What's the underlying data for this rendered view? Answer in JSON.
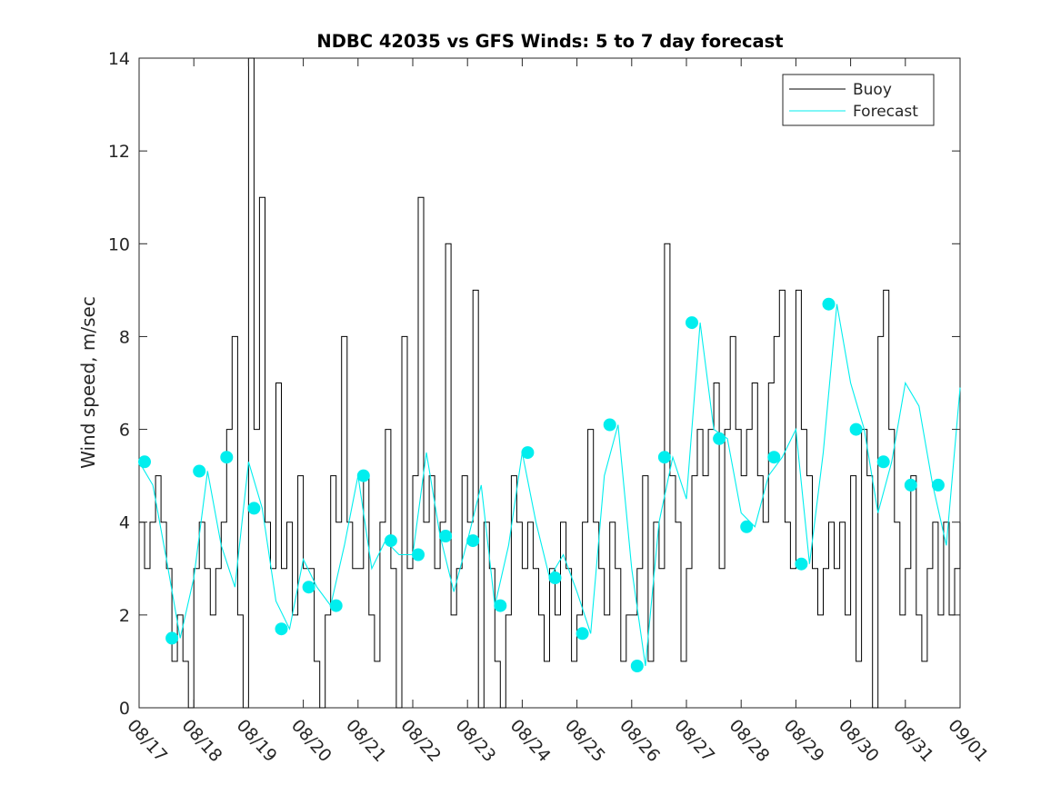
{
  "chart_data": {
    "type": "line",
    "title": "NDBC 42035 vs GFS Winds: 5 to 7 day forecast",
    "xlabel": "",
    "ylabel": "Wind speed, m/sec",
    "x_range": [
      0,
      15
    ],
    "ylim": [
      0,
      14
    ],
    "yticks": [
      0,
      2,
      4,
      6,
      8,
      10,
      12,
      14
    ],
    "x_tick_labels": [
      "08/17",
      "08/18",
      "08/19",
      "08/20",
      "08/21",
      "08/22",
      "08/23",
      "08/24",
      "08/25",
      "08/26",
      "08/27",
      "08/28",
      "08/29",
      "08/30",
      "08/31",
      "09/01"
    ],
    "legend_position": "top-right",
    "legend": [
      {
        "name": "Buoy",
        "color": "#000000"
      },
      {
        "name": "Forecast",
        "color": "#00eeee"
      }
    ],
    "series": [
      {
        "name": "Buoy",
        "color": "#000000",
        "x": [
          0.0,
          0.1,
          0.2,
          0.3,
          0.4,
          0.5,
          0.6,
          0.7,
          0.8,
          0.9,
          1.0,
          1.1,
          1.2,
          1.3,
          1.4,
          1.5,
          1.6,
          1.7,
          1.8,
          1.9,
          2.0,
          2.1,
          2.2,
          2.3,
          2.4,
          2.5,
          2.6,
          2.7,
          2.8,
          2.9,
          3.0,
          3.1,
          3.2,
          3.3,
          3.4,
          3.5,
          3.6,
          3.7,
          3.8,
          3.9,
          4.0,
          4.1,
          4.2,
          4.3,
          4.4,
          4.5,
          4.6,
          4.7,
          4.8,
          4.9,
          5.0,
          5.1,
          5.2,
          5.3,
          5.4,
          5.5,
          5.6,
          5.7,
          5.8,
          5.9,
          6.0,
          6.1,
          6.2,
          6.3,
          6.4,
          6.5,
          6.6,
          6.7,
          6.8,
          6.9,
          7.0,
          7.1,
          7.2,
          7.3,
          7.4,
          7.5,
          7.6,
          7.7,
          7.8,
          7.9,
          8.0,
          8.1,
          8.2,
          8.3,
          8.4,
          8.5,
          8.6,
          8.7,
          8.8,
          8.9,
          9.0,
          9.1,
          9.2,
          9.3,
          9.4,
          9.5,
          9.6,
          9.7,
          9.8,
          9.9,
          10.0,
          10.1,
          10.2,
          10.3,
          10.4,
          10.5,
          10.6,
          10.7,
          10.8,
          10.9,
          11.0,
          11.1,
          11.2,
          11.3,
          11.4,
          11.5,
          11.6,
          11.7,
          11.8,
          11.9,
          12.0,
          12.1,
          12.2,
          12.3,
          12.4,
          12.5,
          12.6,
          12.7,
          12.8,
          12.9,
          13.0,
          13.1,
          13.2,
          13.3,
          13.4,
          13.5,
          13.6,
          13.7,
          13.8,
          13.9,
          14.0,
          14.1,
          14.2,
          14.3,
          14.4,
          14.5,
          14.6,
          14.7,
          14.8,
          14.9,
          15.0
        ],
        "values": [
          4,
          3,
          4,
          5,
          4,
          3,
          1,
          2,
          1,
          0,
          3,
          4,
          3,
          2,
          3,
          4,
          6,
          8,
          2,
          0,
          14,
          6,
          11,
          4,
          3,
          7,
          3,
          4,
          2,
          5,
          3,
          3,
          1,
          0,
          2,
          5,
          4,
          8,
          4,
          3,
          3,
          5,
          2,
          1,
          4,
          6,
          3,
          0,
          8,
          3,
          5,
          11,
          4,
          5,
          3,
          4,
          10,
          2,
          3,
          5,
          4,
          9,
          0,
          4,
          3,
          1,
          0,
          2,
          5,
          4,
          3,
          4,
          3,
          2,
          1,
          3,
          2,
          4,
          3,
          1,
          2,
          4,
          6,
          4,
          3,
          2,
          4,
          3,
          1,
          2,
          2,
          3,
          5,
          1,
          4,
          3,
          10,
          5,
          4,
          1,
          3,
          5,
          6,
          5,
          6,
          7,
          3,
          6,
          8,
          6,
          5,
          6,
          7,
          5,
          4,
          7,
          8,
          9,
          4,
          3,
          9,
          6,
          5,
          3,
          2,
          3,
          4,
          3,
          4,
          2,
          5,
          1,
          6,
          5,
          0,
          8,
          9,
          6,
          4,
          2,
          3,
          5,
          2,
          1,
          3,
          4,
          2,
          4,
          2,
          3,
          4
        ]
      },
      {
        "name": "Forecast",
        "color": "#00eeee",
        "x": [
          0.0,
          0.25,
          0.5,
          0.75,
          1.0,
          1.25,
          1.5,
          1.75,
          2.0,
          2.25,
          2.5,
          2.75,
          3.0,
          3.25,
          3.5,
          3.75,
          4.0,
          4.25,
          4.5,
          4.75,
          5.0,
          5.25,
          5.5,
          5.75,
          6.0,
          6.25,
          6.5,
          6.75,
          7.0,
          7.25,
          7.5,
          7.75,
          8.0,
          8.25,
          8.5,
          8.75,
          9.0,
          9.25,
          9.5,
          9.75,
          10.0,
          10.25,
          10.5,
          10.75,
          11.0,
          11.25,
          11.5,
          11.75,
          12.0,
          12.25,
          12.5,
          12.75,
          13.0,
          13.25,
          13.5,
          13.75,
          14.0,
          14.25,
          14.5,
          14.75,
          15.0
        ],
        "values": [
          5.3,
          4.8,
          3.2,
          1.5,
          2.8,
          5.1,
          3.5,
          2.6,
          5.3,
          4.3,
          2.3,
          1.7,
          3.2,
          2.6,
          2.2,
          3.5,
          5.0,
          3.0,
          3.6,
          3.3,
          3.3,
          5.5,
          3.7,
          2.5,
          3.6,
          4.8,
          2.2,
          3.5,
          5.5,
          4.0,
          2.8,
          3.3,
          2.5,
          1.6,
          5.0,
          6.1,
          3.0,
          0.9,
          4.0,
          5.4,
          4.5,
          8.3,
          6.0,
          5.8,
          4.2,
          3.9,
          5.0,
          5.4,
          6.0,
          3.1,
          5.5,
          8.7,
          7.0,
          6.0,
          4.2,
          5.3,
          7.0,
          6.5,
          4.8,
          3.5,
          6.9
        ]
      }
    ],
    "forecast_markers": {
      "x": [
        0.1,
        0.6,
        1.1,
        1.6,
        2.1,
        2.6,
        3.1,
        3.6,
        4.1,
        4.6,
        5.1,
        5.6,
        6.1,
        6.6,
        7.1,
        7.6,
        8.1,
        8.6,
        9.1,
        9.6,
        10.1,
        10.6,
        11.1,
        11.6,
        12.1,
        12.6,
        13.1,
        13.6,
        14.1,
        14.6
      ],
      "values": [
        5.3,
        1.5,
        5.1,
        5.4,
        4.3,
        1.7,
        2.6,
        2.2,
        5.0,
        3.6,
        3.3,
        3.7,
        3.6,
        2.2,
        5.5,
        2.8,
        1.6,
        6.1,
        0.9,
        5.4,
        8.3,
        5.8,
        3.9,
        5.4,
        3.1,
        8.7,
        6.0,
        5.3,
        4.8,
        4.8
      ]
    }
  }
}
